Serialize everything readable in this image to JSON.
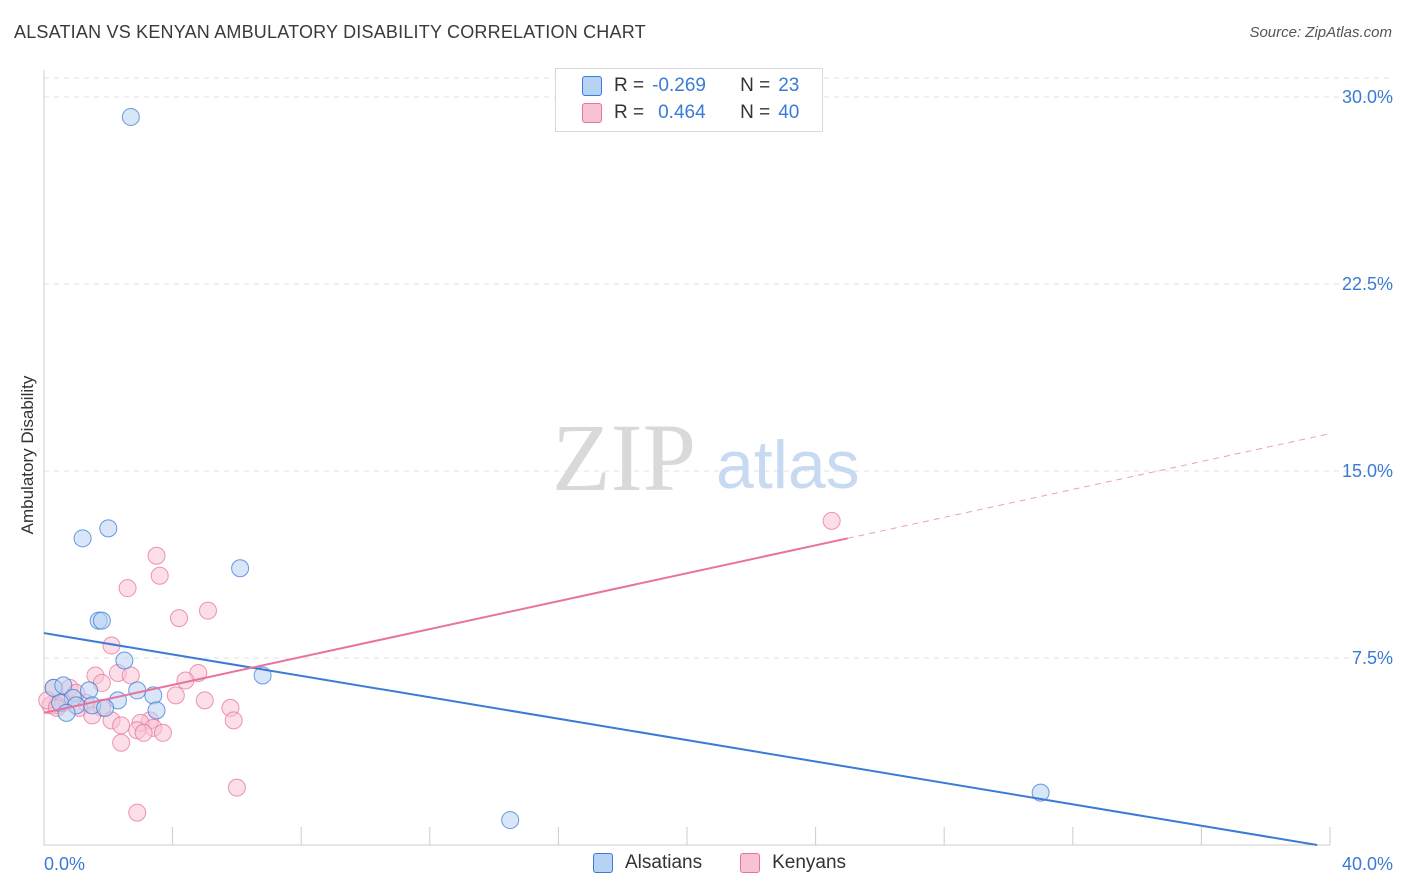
{
  "title": "ALSATIAN VS KENYAN AMBULATORY DISABILITY CORRELATION CHART",
  "source": "Source: ZipAtlas.com",
  "watermark": {
    "zip": "ZIP",
    "atlas": "atlas"
  },
  "colors": {
    "blue": "#3a7bd5",
    "blue_fill": "#b8d2f3",
    "pink": "#e8739c",
    "pink_fill": "#f7c3d3",
    "grid": "#e2e2e2"
  },
  "legend": {
    "rows": [
      {
        "r_label": "R =",
        "r_value": "-0.269",
        "n_label": "N =",
        "n_value": "23"
      },
      {
        "r_label": "R =",
        "r_value": "0.464",
        "n_label": "N =",
        "n_value": "40"
      }
    ]
  },
  "bottom_legend": [
    "Alsatians",
    "Kenyans"
  ],
  "chart_data": {
    "type": "scatter",
    "title": "ALSATIAN VS KENYAN AMBULATORY DISABILITY CORRELATION CHART",
    "xlabel": "",
    "ylabel": "Ambulatory Disability",
    "xlim": [
      0,
      40
    ],
    "ylim": [
      0,
      30
    ],
    "x_tick_labels": [
      "0.0%",
      "40.0%"
    ],
    "y_ticks": [
      7.5,
      15.0,
      22.5,
      30.0
    ],
    "y_tick_labels": [
      "7.5%",
      "15.0%",
      "22.5%",
      "30.0%"
    ],
    "series": [
      {
        "name": "Alsatians",
        "r": -0.269,
        "n": 23,
        "points": [
          [
            2.7,
            29.2
          ],
          [
            1.2,
            12.3
          ],
          [
            2.0,
            12.7
          ],
          [
            6.1,
            11.1
          ],
          [
            1.7,
            9.0
          ],
          [
            1.8,
            9.0
          ],
          [
            2.5,
            7.4
          ],
          [
            6.8,
            6.8
          ],
          [
            0.3,
            6.3
          ],
          [
            0.6,
            6.4
          ],
          [
            1.4,
            6.2
          ],
          [
            2.9,
            6.2
          ],
          [
            3.4,
            6.0
          ],
          [
            0.9,
            5.9
          ],
          [
            2.3,
            5.8
          ],
          [
            0.5,
            5.7
          ],
          [
            1.0,
            5.6
          ],
          [
            1.5,
            5.6
          ],
          [
            1.9,
            5.5
          ],
          [
            0.7,
            5.3
          ],
          [
            3.5,
            5.4
          ],
          [
            14.5,
            1.0
          ],
          [
            31.0,
            2.1
          ]
        ],
        "trend": {
          "x": [
            0,
            39.6
          ],
          "y": [
            8.5,
            0.0
          ],
          "solid_to": 39.6
        }
      },
      {
        "name": "Kenyans",
        "r": 0.464,
        "n": 40,
        "points": [
          [
            24.5,
            13.0
          ],
          [
            3.5,
            11.6
          ],
          [
            3.6,
            10.8
          ],
          [
            2.6,
            10.3
          ],
          [
            5.1,
            9.4
          ],
          [
            4.2,
            9.1
          ],
          [
            2.1,
            8.0
          ],
          [
            2.3,
            6.9
          ],
          [
            1.6,
            6.8
          ],
          [
            4.8,
            6.9
          ],
          [
            2.7,
            6.8
          ],
          [
            4.4,
            6.6
          ],
          [
            1.8,
            6.5
          ],
          [
            0.8,
            6.3
          ],
          [
            0.3,
            6.3
          ],
          [
            4.1,
            6.0
          ],
          [
            5.0,
            5.8
          ],
          [
            1.3,
            5.7
          ],
          [
            0.6,
            5.7
          ],
          [
            1.8,
            5.5
          ],
          [
            0.4,
            5.6
          ],
          [
            1.1,
            5.5
          ],
          [
            0.2,
            5.6
          ],
          [
            5.8,
            5.5
          ],
          [
            1.5,
            5.2
          ],
          [
            2.1,
            5.0
          ],
          [
            5.9,
            5.0
          ],
          [
            3.3,
            5.0
          ],
          [
            3.0,
            4.9
          ],
          [
            2.4,
            4.8
          ],
          [
            3.4,
            4.7
          ],
          [
            2.9,
            4.6
          ],
          [
            3.7,
            4.5
          ],
          [
            3.1,
            4.5
          ],
          [
            2.4,
            4.1
          ],
          [
            6.0,
            2.3
          ],
          [
            2.9,
            1.3
          ],
          [
            0.1,
            5.8
          ],
          [
            1.0,
            6.1
          ],
          [
            0.4,
            5.5
          ]
        ],
        "trend": {
          "x": [
            0,
            40.0
          ],
          "y": [
            5.3,
            16.5
          ],
          "solid_to": 25.0
        }
      }
    ]
  }
}
